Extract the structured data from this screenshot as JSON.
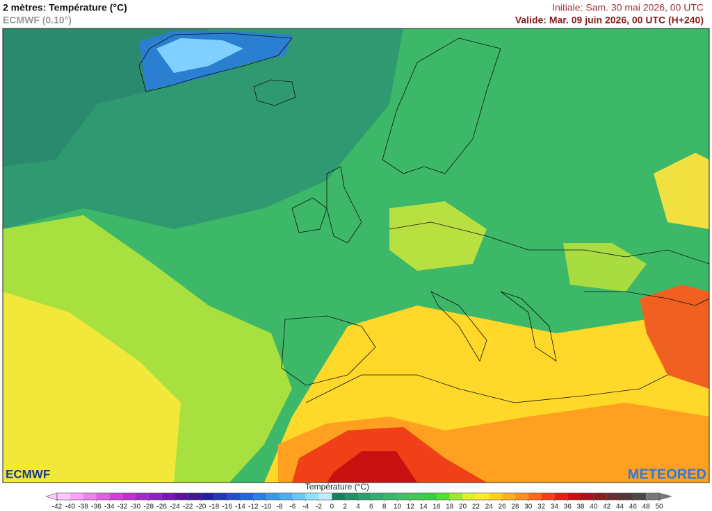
{
  "header": {
    "title": "2 mètres: Température (°C)",
    "subtitle": "ECMWF (0.10°)",
    "initial": "Initiale: Sam. 30 mai 2026, 00 UTC",
    "valid": "Valide: Mar. 09 juin 2026, 00 UTC (H+240)"
  },
  "logos": {
    "left": "ECMWF",
    "right": "METEORED"
  },
  "legend": {
    "label": "Température (°C)",
    "ticks": [
      -42,
      -40,
      -38,
      -36,
      -34,
      -32,
      -30,
      -28,
      -26,
      -24,
      -22,
      -20,
      -18,
      -16,
      -14,
      -12,
      -10,
      -8,
      -6,
      -4,
      -2,
      0,
      2,
      4,
      6,
      8,
      10,
      12,
      14,
      16,
      18,
      20,
      22,
      24,
      26,
      28,
      30,
      32,
      34,
      36,
      38,
      40,
      42,
      44,
      46,
      48,
      50
    ],
    "colors": [
      "#ffc8ff",
      "#ffa0ff",
      "#f080f0",
      "#e060e0",
      "#d040d8",
      "#c030d0",
      "#a828c8",
      "#9020c0",
      "#7818b0",
      "#6010a0",
      "#401890",
      "#2020a0",
      "#2038b8",
      "#2050c8",
      "#2068d8",
      "#2880e0",
      "#3898e8",
      "#48b0f0",
      "#68c8f8",
      "#90e0ff",
      "#c0f0ff",
      "#188060",
      "#209068",
      "#28a070",
      "#30b070",
      "#38b868",
      "#40c060",
      "#40c850",
      "#38d040",
      "#50e030",
      "#a0e830",
      "#e0f030",
      "#ffe830",
      "#ffd020",
      "#ffb020",
      "#ff9020",
      "#ff6818",
      "#f04018",
      "#e02010",
      "#c81010",
      "#a81018",
      "#882020",
      "#683030",
      "#503838",
      "#484848",
      "#787878"
    ]
  }
}
